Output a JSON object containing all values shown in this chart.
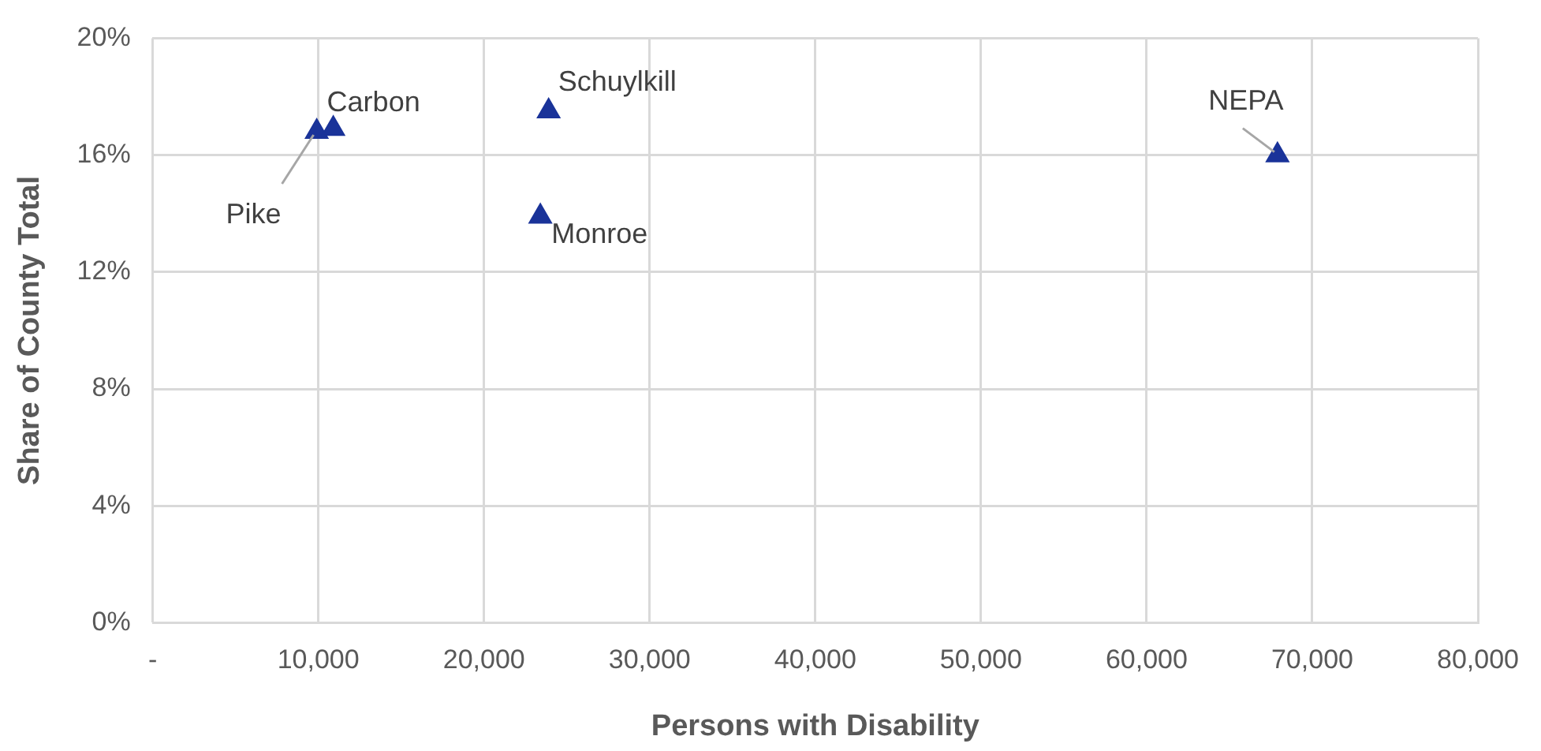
{
  "chart_data": {
    "type": "scatter",
    "xlabel": "Persons with Disability",
    "ylabel": "Share of County Total",
    "series": [
      {
        "color": "#1a3399",
        "x": [
          9900,
          10900,
          23900,
          23400,
          67900
        ],
        "values": [
          16.8,
          16.9,
          17.5,
          13.9,
          16.0
        ]
      }
    ],
    "annotations": [
      {
        "text": "Pike",
        "x": 9900,
        "y": 16.8
      },
      {
        "text": "Carbon",
        "x": 10900,
        "y": 16.9
      },
      {
        "text": "Schuylkill",
        "x": 23900,
        "y": 17.5
      },
      {
        "text": "Monroe",
        "x": 23400,
        "y": 13.9
      },
      {
        "text": "NEPA",
        "x": 67900,
        "y": 16.0
      }
    ],
    "xlim": [
      0,
      80000
    ],
    "xticks": [
      {
        "value": 0,
        "label": "-"
      },
      {
        "value": 10000,
        "label": "10,000"
      },
      {
        "value": 20000,
        "label": "20,000"
      },
      {
        "value": 30000,
        "label": "30,000"
      },
      {
        "value": 40000,
        "label": "40,000"
      },
      {
        "value": 50000,
        "label": "50,000"
      },
      {
        "value": 60000,
        "label": "60,000"
      },
      {
        "value": 70000,
        "label": "70,000"
      },
      {
        "value": 80000,
        "label": "80,000"
      }
    ],
    "ylim": [
      0,
      20
    ],
    "yticks": [
      {
        "value": 0,
        "label": "0%"
      },
      {
        "value": 4,
        "label": "4%"
      },
      {
        "value": 8,
        "label": "8%"
      },
      {
        "value": 12,
        "label": "12%"
      },
      {
        "value": 16,
        "label": "16%"
      },
      {
        "value": 20,
        "label": "20%"
      }
    ],
    "grid": true,
    "legend": false,
    "marker": "triangle"
  }
}
